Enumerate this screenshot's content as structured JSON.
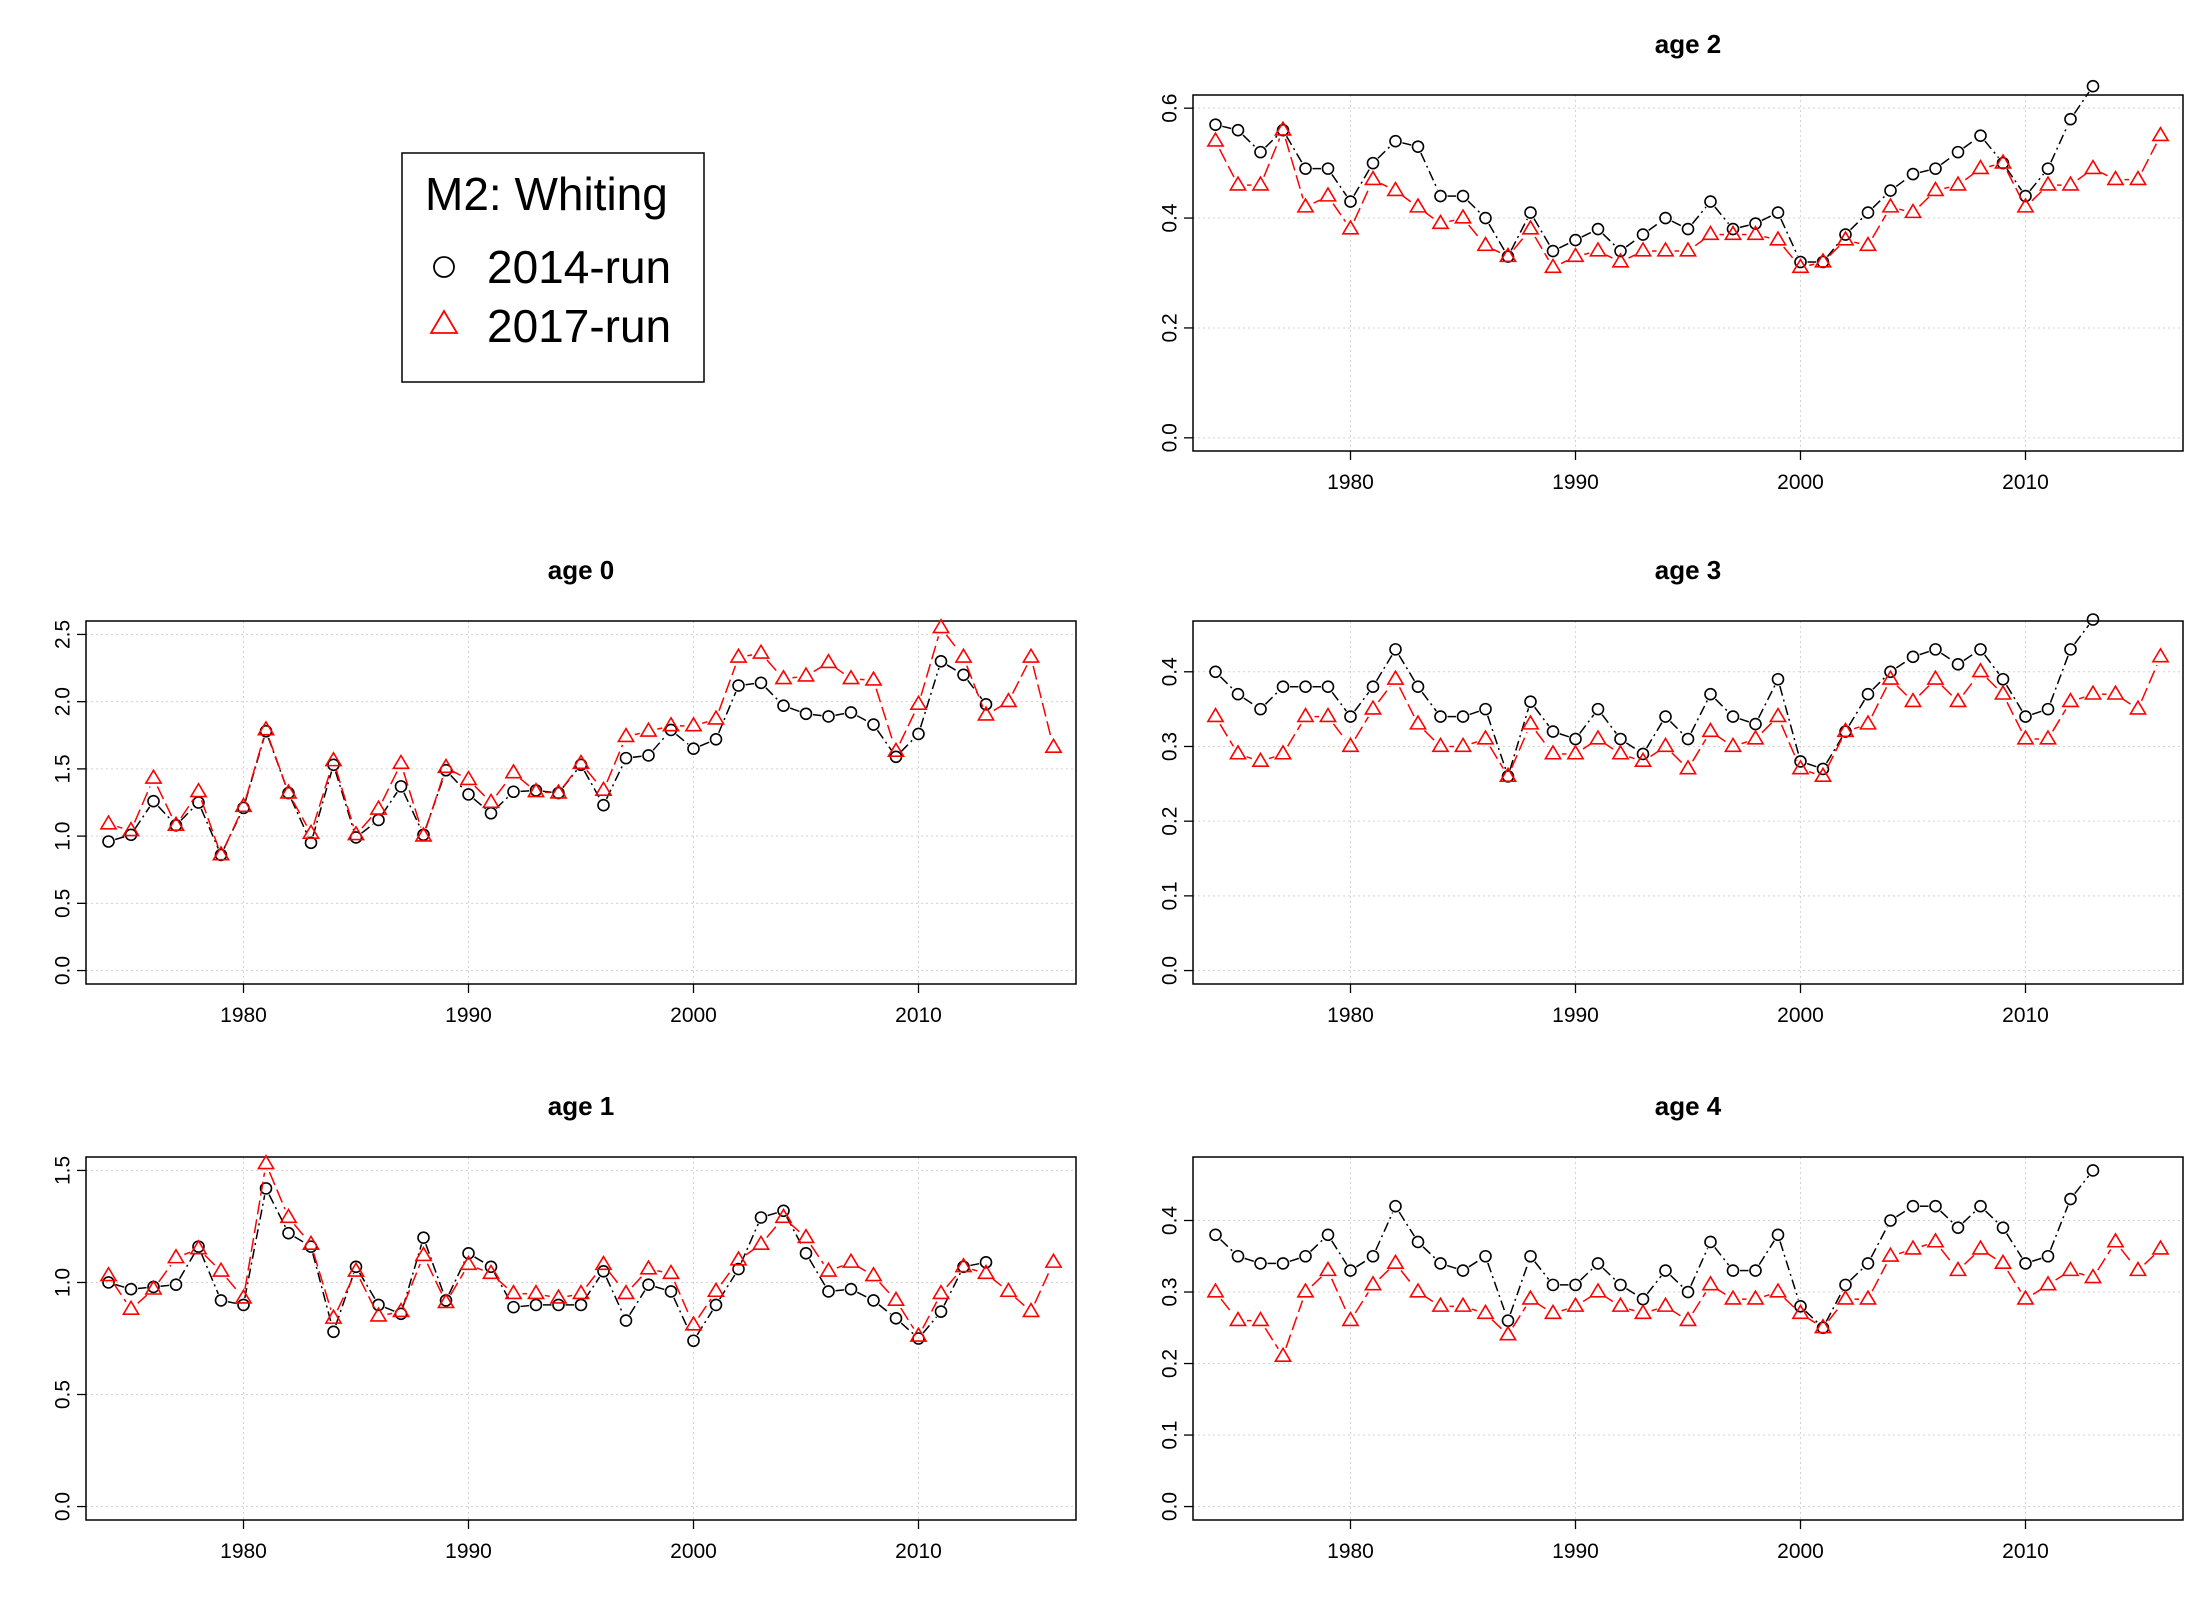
{
  "legend": {
    "title": "M2: Whiting",
    "entries": [
      {
        "label": "2014-run",
        "marker": "circle",
        "color": "#000000"
      },
      {
        "label": "2017-run",
        "marker": "triangle",
        "color": "#ff0000"
      }
    ]
  },
  "chart_data": [
    {
      "type": "line",
      "title": "age 2",
      "xlim": [
        1973,
        2017
      ],
      "ylim": [
        0,
        0.6
      ],
      "xticks": [
        1980,
        1990,
        2000,
        2010
      ],
      "yticks": [
        0.0,
        0.2,
        0.4,
        0.6
      ],
      "ytick_labels": [
        "0.0",
        "0.2",
        "0.4",
        "0.6"
      ],
      "grid": true,
      "series": [
        {
          "name": "2014-run",
          "color": "#000000",
          "marker": "circle",
          "x_start": 1974,
          "values": [
            0.57,
            0.56,
            0.52,
            0.56,
            0.49,
            0.49,
            0.43,
            0.5,
            0.54,
            0.53,
            0.44,
            0.44,
            0.4,
            0.33,
            0.41,
            0.34,
            0.36,
            0.38,
            0.34,
            0.37,
            0.4,
            0.38,
            0.43,
            0.38,
            0.39,
            0.41,
            0.32,
            0.32,
            0.37,
            0.41,
            0.45,
            0.48,
            0.49,
            0.52,
            0.55,
            0.5,
            0.44,
            0.49,
            0.58,
            0.64
          ]
        },
        {
          "name": "2017-run",
          "color": "#ff0000",
          "marker": "triangle",
          "x_start": 1974,
          "values": [
            0.54,
            0.46,
            0.46,
            0.56,
            0.42,
            0.44,
            0.38,
            0.47,
            0.45,
            0.42,
            0.39,
            0.4,
            0.35,
            0.33,
            0.38,
            0.31,
            0.33,
            0.34,
            0.32,
            0.34,
            0.34,
            0.34,
            0.37,
            0.37,
            0.37,
            0.36,
            0.31,
            0.32,
            0.36,
            0.35,
            0.42,
            0.41,
            0.45,
            0.46,
            0.49,
            0.5,
            0.42,
            0.46,
            0.46,
            0.49,
            0.47,
            0.47,
            0.55
          ]
        }
      ]
    },
    {
      "type": "line",
      "title": "age 0",
      "xlim": [
        1973,
        2017
      ],
      "ylim": [
        0,
        2.5
      ],
      "xticks": [
        1980,
        1990,
        2000,
        2010
      ],
      "yticks": [
        0.0,
        0.5,
        1.0,
        1.5,
        2.0,
        2.5
      ],
      "ytick_labels": [
        "0.0",
        "0.5",
        "1.0",
        "1.5",
        "2.0",
        "2.5"
      ],
      "grid": true,
      "series": [
        {
          "name": "2014-run",
          "color": "#000000",
          "marker": "circle",
          "x_start": 1974,
          "values": [
            0.96,
            1.01,
            1.26,
            1.08,
            1.25,
            0.86,
            1.21,
            1.78,
            1.32,
            0.95,
            1.53,
            0.99,
            1.12,
            1.37,
            1.01,
            1.49,
            1.31,
            1.17,
            1.33,
            1.34,
            1.32,
            1.53,
            1.23,
            1.58,
            1.6,
            1.79,
            1.65,
            1.72,
            2.12,
            2.14,
            1.97,
            1.91,
            1.89,
            1.92,
            1.83,
            1.59,
            1.76,
            2.3,
            2.2,
            1.98
          ]
        },
        {
          "name": "2017-run",
          "color": "#ff0000",
          "marker": "triangle",
          "x_start": 1974,
          "values": [
            1.09,
            1.04,
            1.43,
            1.08,
            1.33,
            0.86,
            1.22,
            1.79,
            1.32,
            1.02,
            1.56,
            1.01,
            1.2,
            1.54,
            1.0,
            1.51,
            1.42,
            1.25,
            1.47,
            1.33,
            1.32,
            1.54,
            1.34,
            1.74,
            1.78,
            1.82,
            1.82,
            1.87,
            2.33,
            2.36,
            2.17,
            2.19,
            2.29,
            2.17,
            2.16,
            1.63,
            1.98,
            2.55,
            2.33,
            1.9,
            2.0,
            2.33,
            1.66
          ]
        }
      ]
    },
    {
      "type": "line",
      "title": "age 3",
      "xlim": [
        1973,
        2017
      ],
      "ylim": [
        0,
        0.45
      ],
      "xticks": [
        1980,
        1990,
        2000,
        2010
      ],
      "yticks": [
        0.0,
        0.1,
        0.2,
        0.3,
        0.4
      ],
      "ytick_labels": [
        "0.0",
        "0.1",
        "0.2",
        "0.3",
        "0.4"
      ],
      "grid": true,
      "series": [
        {
          "name": "2014-run",
          "color": "#000000",
          "marker": "circle",
          "x_start": 1974,
          "values": [
            0.4,
            0.37,
            0.35,
            0.38,
            0.38,
            0.38,
            0.34,
            0.38,
            0.43,
            0.38,
            0.34,
            0.34,
            0.35,
            0.26,
            0.36,
            0.32,
            0.31,
            0.35,
            0.31,
            0.29,
            0.34,
            0.31,
            0.37,
            0.34,
            0.33,
            0.39,
            0.28,
            0.27,
            0.32,
            0.37,
            0.4,
            0.42,
            0.43,
            0.41,
            0.43,
            0.39,
            0.34,
            0.35,
            0.43,
            0.47
          ]
        },
        {
          "name": "2017-run",
          "color": "#ff0000",
          "marker": "triangle",
          "x_start": 1974,
          "values": [
            0.34,
            0.29,
            0.28,
            0.29,
            0.34,
            0.34,
            0.3,
            0.35,
            0.39,
            0.33,
            0.3,
            0.3,
            0.31,
            0.26,
            0.33,
            0.29,
            0.29,
            0.31,
            0.29,
            0.28,
            0.3,
            0.27,
            0.32,
            0.3,
            0.31,
            0.34,
            0.27,
            0.26,
            0.32,
            0.33,
            0.39,
            0.36,
            0.39,
            0.36,
            0.4,
            0.37,
            0.31,
            0.31,
            0.36,
            0.37,
            0.37,
            0.35,
            0.42
          ]
        }
      ]
    },
    {
      "type": "line",
      "title": "age 1",
      "xlim": [
        1973,
        2017
      ],
      "ylim": [
        0,
        1.5
      ],
      "xticks": [
        1980,
        1990,
        2000,
        2010
      ],
      "yticks": [
        0.0,
        0.5,
        1.0,
        1.5
      ],
      "ytick_labels": [
        "0.0",
        "0.5",
        "1.0",
        "1.5"
      ],
      "grid": true,
      "series": [
        {
          "name": "2014-run",
          "color": "#000000",
          "marker": "circle",
          "x_start": 1974,
          "values": [
            1.0,
            0.97,
            0.98,
            0.99,
            1.16,
            0.92,
            0.9,
            1.42,
            1.22,
            1.16,
            0.78,
            1.07,
            0.9,
            0.86,
            1.2,
            0.92,
            1.13,
            1.07,
            0.89,
            0.9,
            0.9,
            0.9,
            1.05,
            0.83,
            0.99,
            0.96,
            0.74,
            0.9,
            1.06,
            1.29,
            1.32,
            1.13,
            0.96,
            0.97,
            0.92,
            0.84,
            0.75,
            0.87,
            1.07,
            1.09
          ]
        },
        {
          "name": "2017-run",
          "color": "#ff0000",
          "marker": "triangle",
          "x_start": 1974,
          "values": [
            1.03,
            0.88,
            0.97,
            1.11,
            1.15,
            1.05,
            0.93,
            1.53,
            1.29,
            1.17,
            0.84,
            1.05,
            0.85,
            0.87,
            1.12,
            0.91,
            1.08,
            1.04,
            0.95,
            0.95,
            0.93,
            0.95,
            1.08,
            0.95,
            1.06,
            1.04,
            0.81,
            0.96,
            1.1,
            1.17,
            1.29,
            1.2,
            1.05,
            1.09,
            1.03,
            0.92,
            0.76,
            0.95,
            1.07,
            1.04,
            0.96,
            0.87,
            1.09
          ]
        }
      ]
    },
    {
      "type": "line",
      "title": "age 4",
      "xlim": [
        1973,
        2017
      ],
      "ylim": [
        0,
        0.47
      ],
      "xticks": [
        1980,
        1990,
        2000,
        2010
      ],
      "yticks": [
        0.0,
        0.1,
        0.2,
        0.3,
        0.4
      ],
      "ytick_labels": [
        "0.0",
        "0.1",
        "0.2",
        "0.3",
        "0.4"
      ],
      "grid": true,
      "series": [
        {
          "name": "2014-run",
          "color": "#000000",
          "marker": "circle",
          "x_start": 1974,
          "values": [
            0.38,
            0.35,
            0.34,
            0.34,
            0.35,
            0.38,
            0.33,
            0.35,
            0.42,
            0.37,
            0.34,
            0.33,
            0.35,
            0.26,
            0.35,
            0.31,
            0.31,
            0.34,
            0.31,
            0.29,
            0.33,
            0.3,
            0.37,
            0.33,
            0.33,
            0.38,
            0.28,
            0.25,
            0.31,
            0.34,
            0.4,
            0.42,
            0.42,
            0.39,
            0.42,
            0.39,
            0.34,
            0.35,
            0.43,
            0.47
          ]
        },
        {
          "name": "2017-run",
          "color": "#ff0000",
          "marker": "triangle",
          "x_start": 1974,
          "values": [
            0.3,
            0.26,
            0.26,
            0.21,
            0.3,
            0.33,
            0.26,
            0.31,
            0.34,
            0.3,
            0.28,
            0.28,
            0.27,
            0.24,
            0.29,
            0.27,
            0.28,
            0.3,
            0.28,
            0.27,
            0.28,
            0.26,
            0.31,
            0.29,
            0.29,
            0.3,
            0.27,
            0.25,
            0.29,
            0.29,
            0.35,
            0.36,
            0.37,
            0.33,
            0.36,
            0.34,
            0.29,
            0.31,
            0.33,
            0.32,
            0.37,
            0.33,
            0.36
          ]
        }
      ]
    }
  ]
}
